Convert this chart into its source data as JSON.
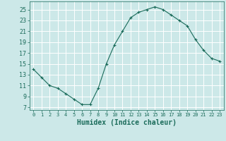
{
  "title": "",
  "xlabel": "Humidex (Indice chaleur)",
  "x_values": [
    0,
    1,
    2,
    3,
    4,
    5,
    6,
    7,
    8,
    9,
    10,
    11,
    12,
    13,
    14,
    15,
    16,
    17,
    18,
    19,
    20,
    21,
    22,
    23
  ],
  "y_values": [
    14,
    12.5,
    11,
    10.5,
    9.5,
    8.5,
    7.5,
    7.5,
    10.5,
    15,
    18.5,
    21,
    23.5,
    24.5,
    25,
    25.5,
    25,
    24,
    23,
    22,
    19.5,
    17.5,
    16,
    15.5
  ],
  "xlim": [
    -0.5,
    23.5
  ],
  "ylim": [
    6.5,
    26.5
  ],
  "yticks": [
    7,
    9,
    11,
    13,
    15,
    17,
    19,
    21,
    23,
    25
  ],
  "xticks": [
    0,
    1,
    2,
    3,
    4,
    5,
    6,
    7,
    8,
    9,
    10,
    11,
    12,
    13,
    14,
    15,
    16,
    17,
    18,
    19,
    20,
    21,
    22,
    23
  ],
  "line_color": "#1a6b5a",
  "marker": "+",
  "marker_size": 3,
  "bg_color": "#cce8e8",
  "grid_color": "#ffffff",
  "tick_color": "#1a6b5a",
  "label_color": "#1a6b5a"
}
